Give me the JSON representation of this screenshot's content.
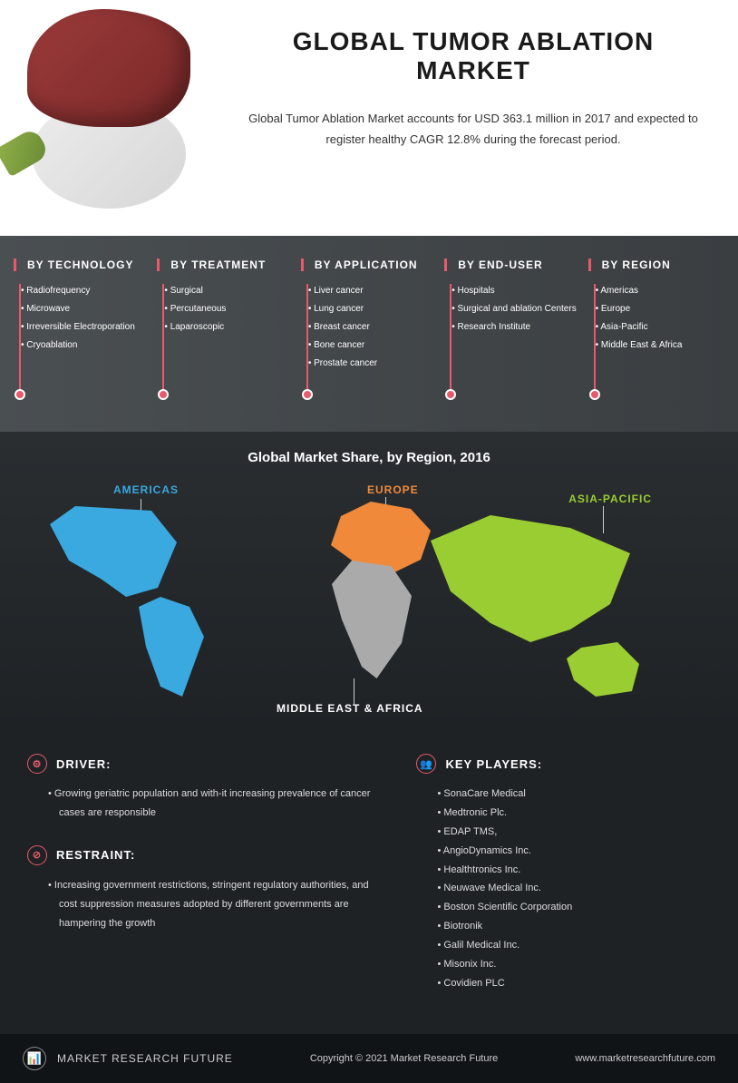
{
  "hero": {
    "title": "GLOBAL TUMOR ABLATION MARKET",
    "subtitle": "Global Tumor Ablation Market accounts for USD 363.1 million in 2017 and expected to register healthy CAGR 12.8% during the forecast period."
  },
  "categories": [
    {
      "title": "BY TECHNOLOGY",
      "items": [
        "Radiofrequency",
        "Microwave",
        "Irreversible Electroporation",
        "Cryoablation"
      ]
    },
    {
      "title": "BY TREATMENT",
      "items": [
        "Surgical",
        "Percutaneous",
        "Laparoscopic"
      ]
    },
    {
      "title": "BY APPLICATION",
      "items": [
        "Liver cancer",
        "Lung cancer",
        "Breast cancer",
        "Bone cancer",
        "Prostate cancer"
      ]
    },
    {
      "title": "BY END-USER",
      "items": [
        "Hospitals",
        "Surgical and ablation Centers",
        "Research Institute"
      ]
    },
    {
      "title": "BY REGION",
      "items": [
        "Americas",
        "Europe",
        "Asia-Pacific",
        "Middle East & Africa"
      ]
    }
  ],
  "map": {
    "title": "Global Market Share, by Region, 2016",
    "regions": {
      "americas": {
        "label": "AMERICAS",
        "color": "#3aa9e0"
      },
      "europe": {
        "label": "EUROPE",
        "color": "#f08a3a"
      },
      "asiapacific": {
        "label": "ASIA-PACIFIC",
        "color": "#9acd32"
      },
      "mea": {
        "label": "MIDDLE EAST & AFRICA",
        "color": "#aaaaaa"
      }
    }
  },
  "driver": {
    "title": "DRIVER:",
    "items": [
      "Growing geriatric population and with-it increasing prevalence of cancer cases are responsible"
    ]
  },
  "restraint": {
    "title": "RESTRAINT:",
    "items": [
      "Increasing government restrictions, stringent regulatory authorities, and cost suppression measures adopted by different governments are hampering the growth"
    ]
  },
  "keyplayers": {
    "title": "KEY PLAYERS:",
    "items": [
      "SonaCare Medical",
      "Medtronic Plc.",
      "EDAP TMS,",
      "AngioDynamics Inc.",
      "Healthtronics Inc.",
      "Neuwave Medical Inc.",
      "Boston Scientific Corporation",
      "Biotronik",
      "Galil Medical Inc.",
      "Misonix Inc.",
      "Covidien PLC"
    ]
  },
  "footer": {
    "brand": "MARKET RESEARCH FUTURE",
    "copyright": "Copyright © 2021 Market Research Future",
    "url": "www.marketresearchfuture.com"
  },
  "colors": {
    "accent": "#e85a6a",
    "dark_bg": "#1e2225",
    "mid_bg": "#4a4f52",
    "americas": "#3aa9e0",
    "europe": "#f08a3a",
    "asia": "#9acd32",
    "mea": "#aaaaaa"
  }
}
